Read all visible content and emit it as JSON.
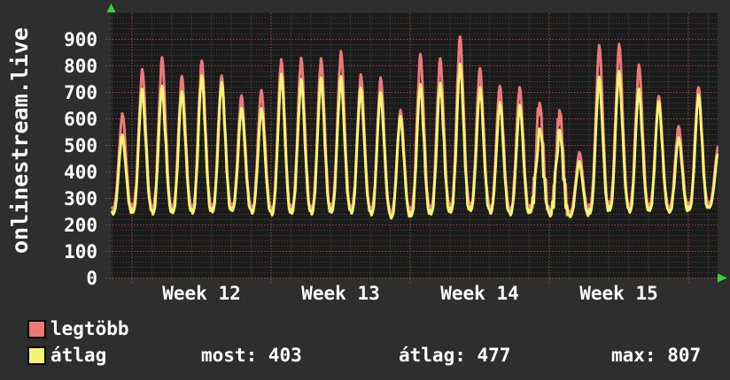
{
  "title": {
    "vertical_label": "onlinestream.live"
  },
  "axes": {
    "y_tick_labels": [
      "0",
      "100",
      "200",
      "300",
      "400",
      "500",
      "600",
      "700",
      "800",
      "900"
    ],
    "x_week_labels": [
      "Week 12",
      "Week 13",
      "Week 14",
      "Week 15"
    ]
  },
  "legend": {
    "items": [
      {
        "label": "legtöbb",
        "color": "#ef7878"
      },
      {
        "label": "átlag",
        "color": "#f5f573"
      }
    ]
  },
  "stats": {
    "items": [
      {
        "text": "most: 403"
      },
      {
        "text": "átlag: 477"
      },
      {
        "text": "max: 807"
      }
    ]
  },
  "colors": {
    "page_bg": "#2e2e2e",
    "plot_bg": "#1b1b1b",
    "grid_minor": "#4c4c4c",
    "grid_major": "#a14b4b",
    "arrow_green": "#3bd13b",
    "text": "#ffffff"
  },
  "chart_data": {
    "type": "line",
    "title": "onlinestream.live",
    "ylabel_ticks": [
      0,
      100,
      200,
      300,
      400,
      500,
      600,
      700,
      800,
      900
    ],
    "ylim": [
      0,
      1000
    ],
    "x_week_labels": [
      "Week 12",
      "Week 13",
      "Week 14",
      "Week 15"
    ],
    "x_unit": "days",
    "n_days": 31,
    "grid": "dotted, minor every 20 units / 1 day, major every 100 units / 1 week",
    "legend_position": "bottom-left",
    "series": [
      {
        "name": "legtöbb",
        "color": "#ef7878",
        "daily_peaks": [
          620,
          787,
          832,
          761,
          819,
          763,
          688,
          708,
          824,
          830,
          828,
          855,
          767,
          756,
          633,
          844,
          828,
          910,
          791,
          724,
          719,
          660,
          632,
          474,
          878,
          882,
          804,
          686,
          572,
          719,
          500
        ],
        "daily_mins": [
          255,
          262,
          255,
          260,
          258,
          263,
          268,
          258,
          252,
          258,
          255,
          262,
          258,
          252,
          238,
          248,
          255,
          262,
          268,
          258,
          252,
          262,
          248,
          245,
          258,
          270,
          262,
          268,
          262,
          272,
          280
        ]
      },
      {
        "name": "átlag",
        "color": "#f5f573",
        "daily_peaks": [
          540,
          713,
          724,
          703,
          763,
          738,
          641,
          640,
          769,
          750,
          756,
          760,
          717,
          700,
          610,
          730,
          735,
          808,
          719,
          663,
          652,
          563,
          558,
          440,
          758,
          780,
          713,
          665,
          530,
          691,
          480
        ],
        "daily_mins": [
          240,
          247,
          240,
          245,
          243,
          248,
          253,
          243,
          237,
          243,
          240,
          247,
          243,
          237,
          225,
          233,
          240,
          247,
          253,
          243,
          237,
          247,
          233,
          230,
          243,
          255,
          247,
          253,
          247,
          257,
          265
        ]
      }
    ],
    "irregular_days": [
      21,
      22
    ],
    "summary": {
      "most": 403,
      "atlag": 477,
      "max": 807
    }
  }
}
